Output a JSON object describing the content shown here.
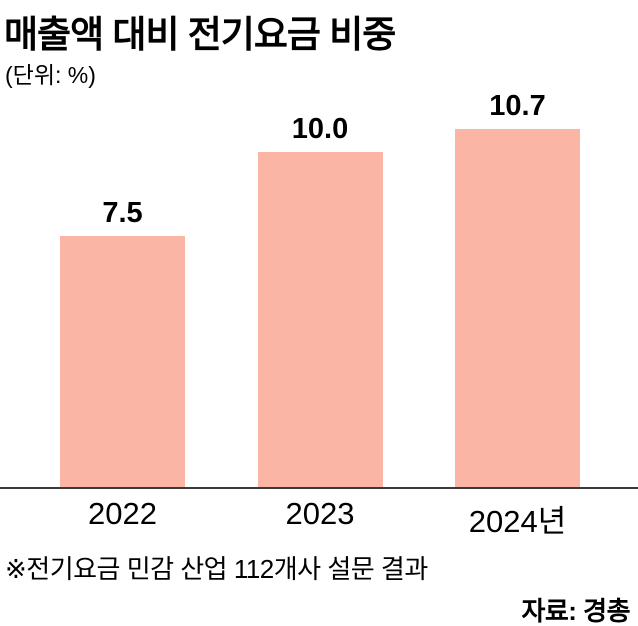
{
  "header": {
    "title": "매출액 대비 전기요금 비중",
    "unit": "(단위: %)"
  },
  "chart_data": {
    "type": "bar",
    "title": "매출액 대비 전기요금 비중",
    "unit_label": "(단위: %)",
    "categories": [
      "2022",
      "2023",
      "2024년"
    ],
    "values": [
      7.5,
      10.0,
      10.7
    ],
    "value_labels": [
      "7.5",
      "10.0",
      "10.7"
    ],
    "ylim": [
      0,
      11.76
    ],
    "grid": false,
    "legend": false,
    "bar_color": "#fbb5a4"
  },
  "footer": {
    "note": "※전기요금 민감 산업 112개사 설문 결과",
    "source": "자료: 경총"
  },
  "colors": {
    "bar": "#fbb5a4",
    "text": "#000000",
    "axis_line": "#3a3a3a",
    "background": "#ffffff"
  }
}
